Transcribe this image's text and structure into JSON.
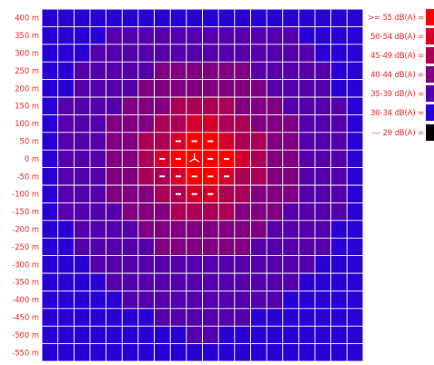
{
  "chart_data": {
    "type": "heatmap",
    "title": "",
    "xlabel": "",
    "ylabel": "",
    "grid": true,
    "legend_position": "right",
    "label_color": "#ff2a2a",
    "grid_color": "#ffffff",
    "y_tick_labels": [
      "400 m",
      "350 m",
      "300 m",
      "250 m",
      "200 m",
      "150 m",
      "100 m",
      "50 m",
      "0 m",
      "-50 m",
      "-100 m",
      "-150 m",
      "-200 m",
      "-250 m",
      "-300 m",
      "-350 m",
      "-400 m",
      "-450 m",
      "-500 m",
      "-550 m"
    ],
    "grid_cells": {
      "columns": 20,
      "rows": 20
    },
    "center_cell": {
      "column": 9,
      "row": 8
    },
    "source_marker_icon": "wind-turbine-icon",
    "dash_markers": [
      [
        8,
        7
      ],
      [
        9,
        7
      ],
      [
        10,
        7
      ],
      [
        7,
        8
      ],
      [
        8,
        8
      ],
      [
        10,
        8
      ],
      [
        11,
        8
      ],
      [
        7,
        9
      ],
      [
        8,
        9
      ],
      [
        9,
        9
      ],
      [
        10,
        9
      ],
      [
        11,
        9
      ],
      [
        8,
        10
      ],
      [
        9,
        10
      ],
      [
        10,
        10
      ]
    ],
    "legend": [
      {
        "label": ">= 55 dB(A) =",
        "color": "#ff0000",
        "min_db": 55
      },
      {
        "label": "50-54 dB(A) =",
        "color": "#d4002b",
        "min_db": 50
      },
      {
        "label": "45-49 dB(A) =",
        "color": "#aa0055",
        "min_db": 45
      },
      {
        "label": "40-44 dB(A) =",
        "color": "#800080",
        "min_db": 40
      },
      {
        "label": "35-39 dB(A) =",
        "color": "#5500aa",
        "min_db": 35
      },
      {
        "label": "30-34 dB(A) =",
        "color": "#2a00d4",
        "min_db": 30
      },
      {
        "label": "--- 29 dB(A) =",
        "color": "#000000",
        "min_db": 0
      }
    ],
    "cells_db": [
      [
        31,
        31,
        31,
        31,
        31,
        31,
        31,
        31,
        31,
        31,
        31,
        31,
        31,
        31,
        31,
        31,
        31,
        31,
        31,
        31
      ],
      [
        31,
        31,
        31,
        31,
        36,
        36,
        36,
        36,
        36,
        36,
        36,
        36,
        36,
        36,
        36,
        36,
        31,
        31,
        31,
        31
      ],
      [
        31,
        31,
        31,
        36,
        36,
        36,
        36,
        36,
        36,
        36,
        36,
        36,
        36,
        36,
        36,
        36,
        36,
        31,
        31,
        31
      ],
      [
        31,
        31,
        36,
        36,
        36,
        36,
        36,
        41,
        41,
        41,
        41,
        41,
        41,
        36,
        36,
        36,
        36,
        36,
        31,
        31
      ],
      [
        31,
        31,
        36,
        36,
        36,
        36,
        41,
        41,
        41,
        41,
        41,
        41,
        41,
        41,
        36,
        36,
        36,
        36,
        31,
        31
      ],
      [
        31,
        36,
        36,
        36,
        36,
        41,
        41,
        41,
        46,
        46,
        46,
        46,
        41,
        41,
        41,
        36,
        36,
        36,
        36,
        31
      ],
      [
        31,
        36,
        36,
        36,
        41,
        41,
        41,
        46,
        46,
        51,
        51,
        46,
        46,
        41,
        41,
        41,
        36,
        36,
        36,
        31
      ],
      [
        31,
        36,
        36,
        36,
        41,
        41,
        46,
        46,
        51,
        56,
        56,
        51,
        46,
        46,
        41,
        41,
        36,
        36,
        36,
        31
      ],
      [
        31,
        36,
        36,
        36,
        41,
        41,
        46,
        51,
        56,
        56,
        56,
        56,
        51,
        46,
        41,
        41,
        36,
        36,
        36,
        31
      ],
      [
        31,
        36,
        36,
        36,
        41,
        41,
        46,
        46,
        51,
        56,
        56,
        51,
        46,
        46,
        41,
        41,
        36,
        36,
        36,
        31
      ],
      [
        31,
        36,
        36,
        36,
        41,
        41,
        41,
        46,
        46,
        51,
        51,
        46,
        46,
        41,
        41,
        41,
        36,
        36,
        36,
        31
      ],
      [
        31,
        36,
        36,
        36,
        36,
        41,
        41,
        41,
        46,
        46,
        46,
        46,
        41,
        41,
        41,
        36,
        36,
        36,
        36,
        31
      ],
      [
        31,
        31,
        36,
        36,
        36,
        36,
        41,
        41,
        41,
        41,
        41,
        41,
        41,
        41,
        36,
        36,
        36,
        36,
        31,
        31
      ],
      [
        31,
        31,
        36,
        36,
        36,
        36,
        36,
        41,
        41,
        41,
        41,
        41,
        41,
        36,
        36,
        36,
        36,
        36,
        31,
        31
      ],
      [
        31,
        31,
        31,
        36,
        36,
        36,
        36,
        36,
        36,
        36,
        36,
        36,
        36,
        36,
        36,
        36,
        36,
        31,
        31,
        31
      ],
      [
        31,
        31,
        31,
        31,
        36,
        36,
        36,
        36,
        36,
        36,
        36,
        36,
        36,
        36,
        36,
        36,
        31,
        31,
        31,
        31
      ],
      [
        31,
        31,
        31,
        31,
        31,
        36,
        36,
        36,
        36,
        36,
        36,
        36,
        36,
        36,
        36,
        31,
        31,
        31,
        31,
        31
      ],
      [
        31,
        31,
        31,
        31,
        31,
        31,
        31,
        36,
        36,
        36,
        36,
        36,
        36,
        31,
        31,
        31,
        31,
        31,
        31,
        31
      ],
      [
        31,
        31,
        31,
        31,
        31,
        31,
        31,
        31,
        31,
        36,
        36,
        31,
        31,
        31,
        31,
        31,
        31,
        31,
        31,
        31
      ],
      [
        31,
        31,
        31,
        31,
        31,
        31,
        31,
        31,
        31,
        31,
        31,
        31,
        31,
        31,
        31,
        31,
        31,
        31,
        31,
        31
      ]
    ]
  }
}
